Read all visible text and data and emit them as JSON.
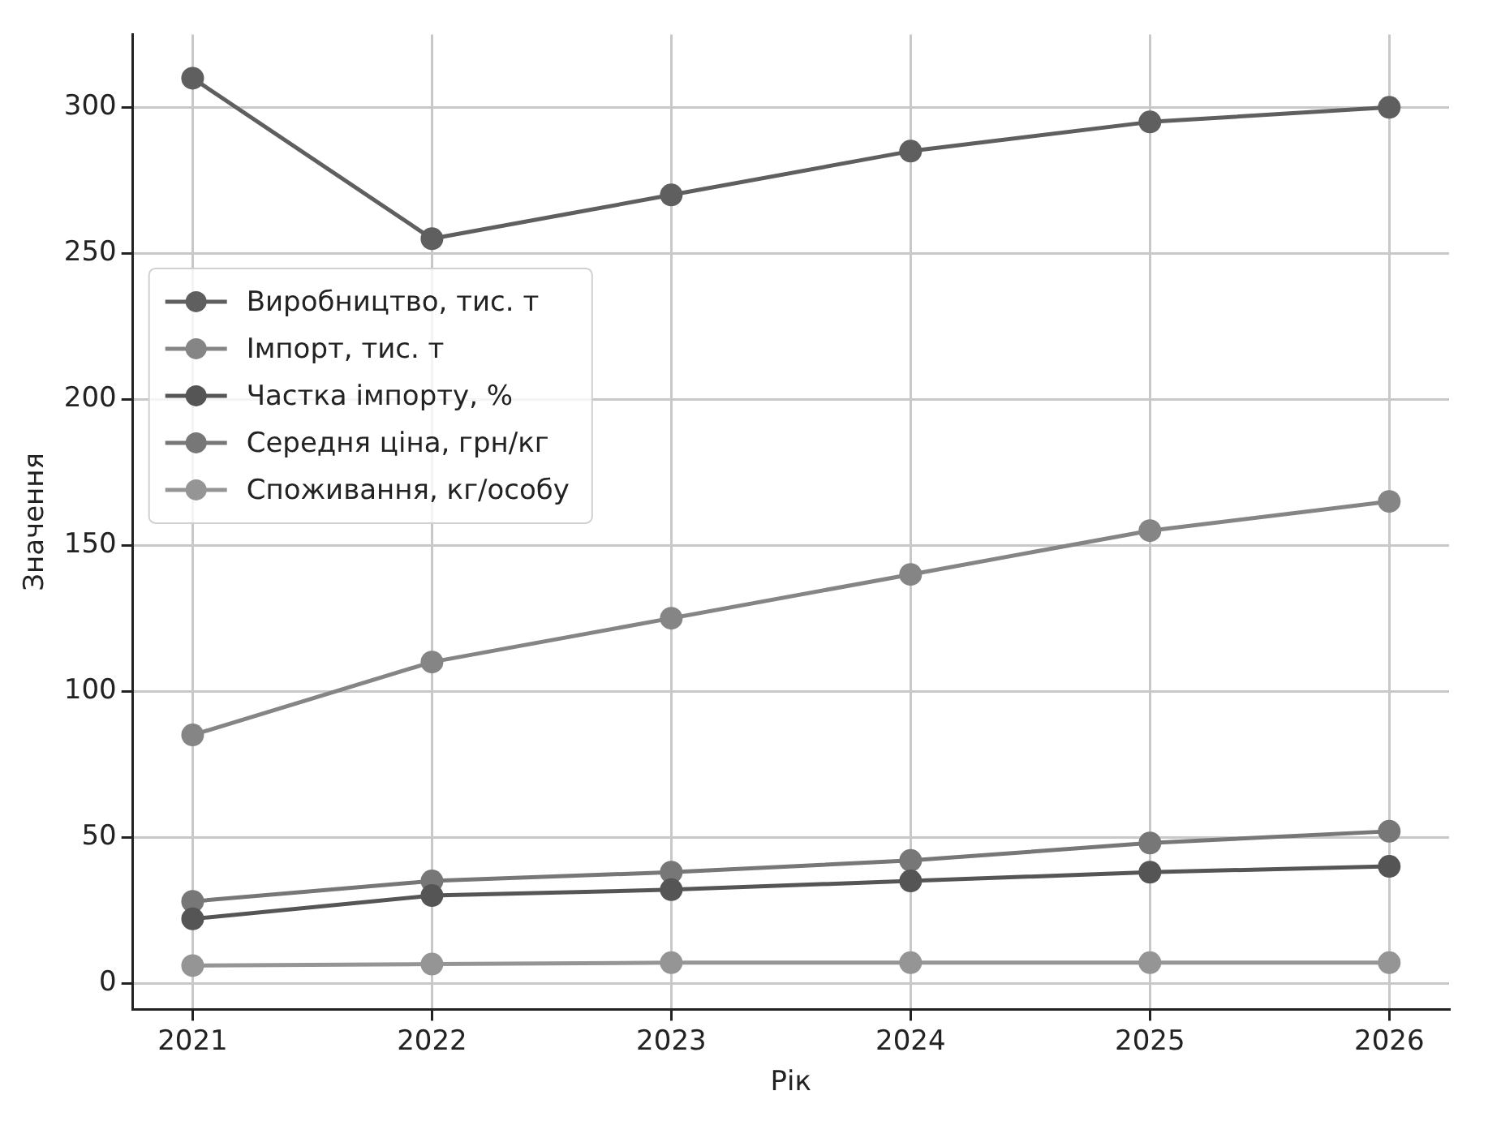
{
  "chart_data": {
    "type": "line",
    "xlabel": "Рік",
    "ylabel": "Значення",
    "x": [
      2021,
      2022,
      2023,
      2024,
      2025,
      2026
    ],
    "xlim": [
      2020.75,
      2026.25
    ],
    "xticks": [
      2021,
      2022,
      2023,
      2024,
      2025,
      2026
    ],
    "ylim": [
      -9,
      325
    ],
    "yticks": [
      0,
      50,
      100,
      150,
      200,
      250,
      300
    ],
    "grid": true,
    "legend": "center left",
    "marker": "circle",
    "line_style": "solid",
    "series": [
      {
        "name": "Виробництво, тис. т",
        "color": "#5f5f5f",
        "values": [
          310,
          255,
          270,
          285,
          295,
          300
        ]
      },
      {
        "name": "Імпорт, тис. т",
        "color": "#858585",
        "values": [
          85,
          110,
          125,
          140,
          155,
          165
        ]
      },
      {
        "name": "Частка імпорту, %",
        "color": "#555555",
        "values": [
          22,
          30,
          32,
          35,
          38,
          40
        ]
      },
      {
        "name": "Середня ціна, грн/кг",
        "color": "#777777",
        "values": [
          28,
          35,
          38,
          42,
          48,
          52
        ]
      },
      {
        "name": "Споживання, кг/особу",
        "color": "#959595",
        "values": [
          6,
          6.5,
          7,
          7,
          7,
          7
        ]
      }
    ]
  }
}
